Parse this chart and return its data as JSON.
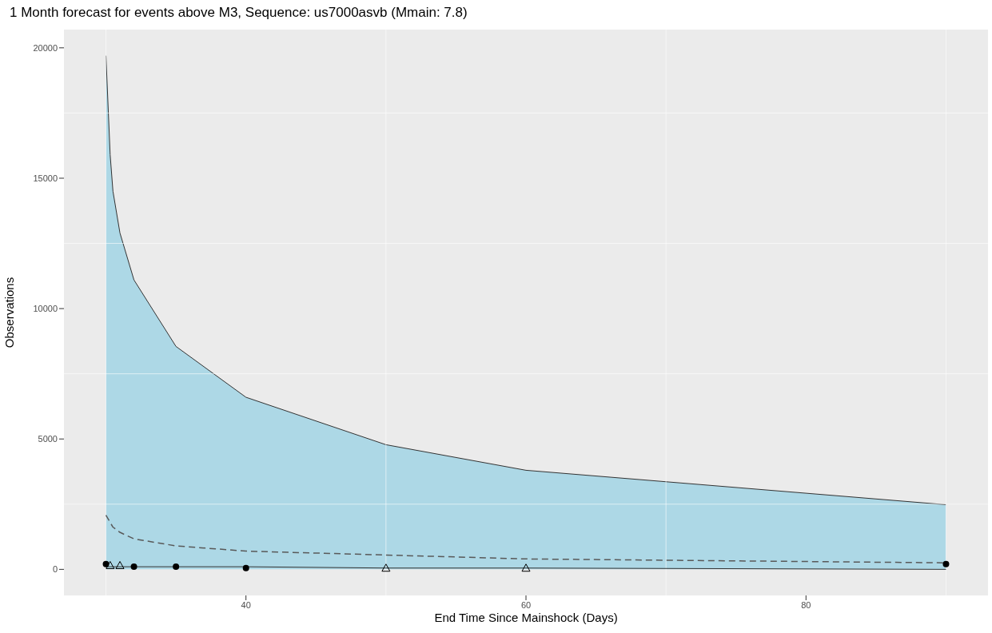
{
  "chart_data": {
    "type": "line",
    "title": "1 Month forecast for events above M3, Sequence: us7000asvb (Mmain: 7.8)",
    "xlabel": "End Time Since Mainshock (Days)",
    "ylabel": "Observations",
    "x": [
      30,
      30.3,
      30.5,
      31,
      32,
      35,
      40,
      50,
      60,
      90
    ],
    "series": [
      {
        "type": "area",
        "color": "#add8e6",
        "values": [
          19700,
          15900,
          14500,
          12900,
          11100,
          8550,
          6600,
          4780,
          3800,
          2480
        ]
      },
      {
        "color": "#333333",
        "values": [
          100,
          100,
          100,
          100,
          100,
          100,
          100,
          50,
          50,
          0
        ]
      },
      {
        "color": "#595959",
        "line_style": "dashed",
        "values": [
          2080,
          1800,
          1620,
          1420,
          1170,
          900,
          700,
          550,
          400,
          250
        ]
      },
      {
        "type": "scatter",
        "color": "#000000",
        "marker": "circle",
        "x": [
          30,
          32,
          35,
          40,
          90
        ],
        "values": [
          200,
          100,
          100,
          50,
          200
        ]
      },
      {
        "type": "scatter",
        "color": "#000000",
        "marker": "triangle",
        "x": [
          30.3,
          31,
          50,
          60
        ],
        "values": [
          150,
          150,
          50,
          50
        ]
      }
    ],
    "xlim": [
      27,
      93
    ],
    "xticks": [
      40,
      60,
      80
    ],
    "ylim": [
      -1000,
      20700
    ],
    "yticks": [
      0,
      5000,
      10000,
      15000,
      20000
    ],
    "grid": true,
    "legend": false
  }
}
